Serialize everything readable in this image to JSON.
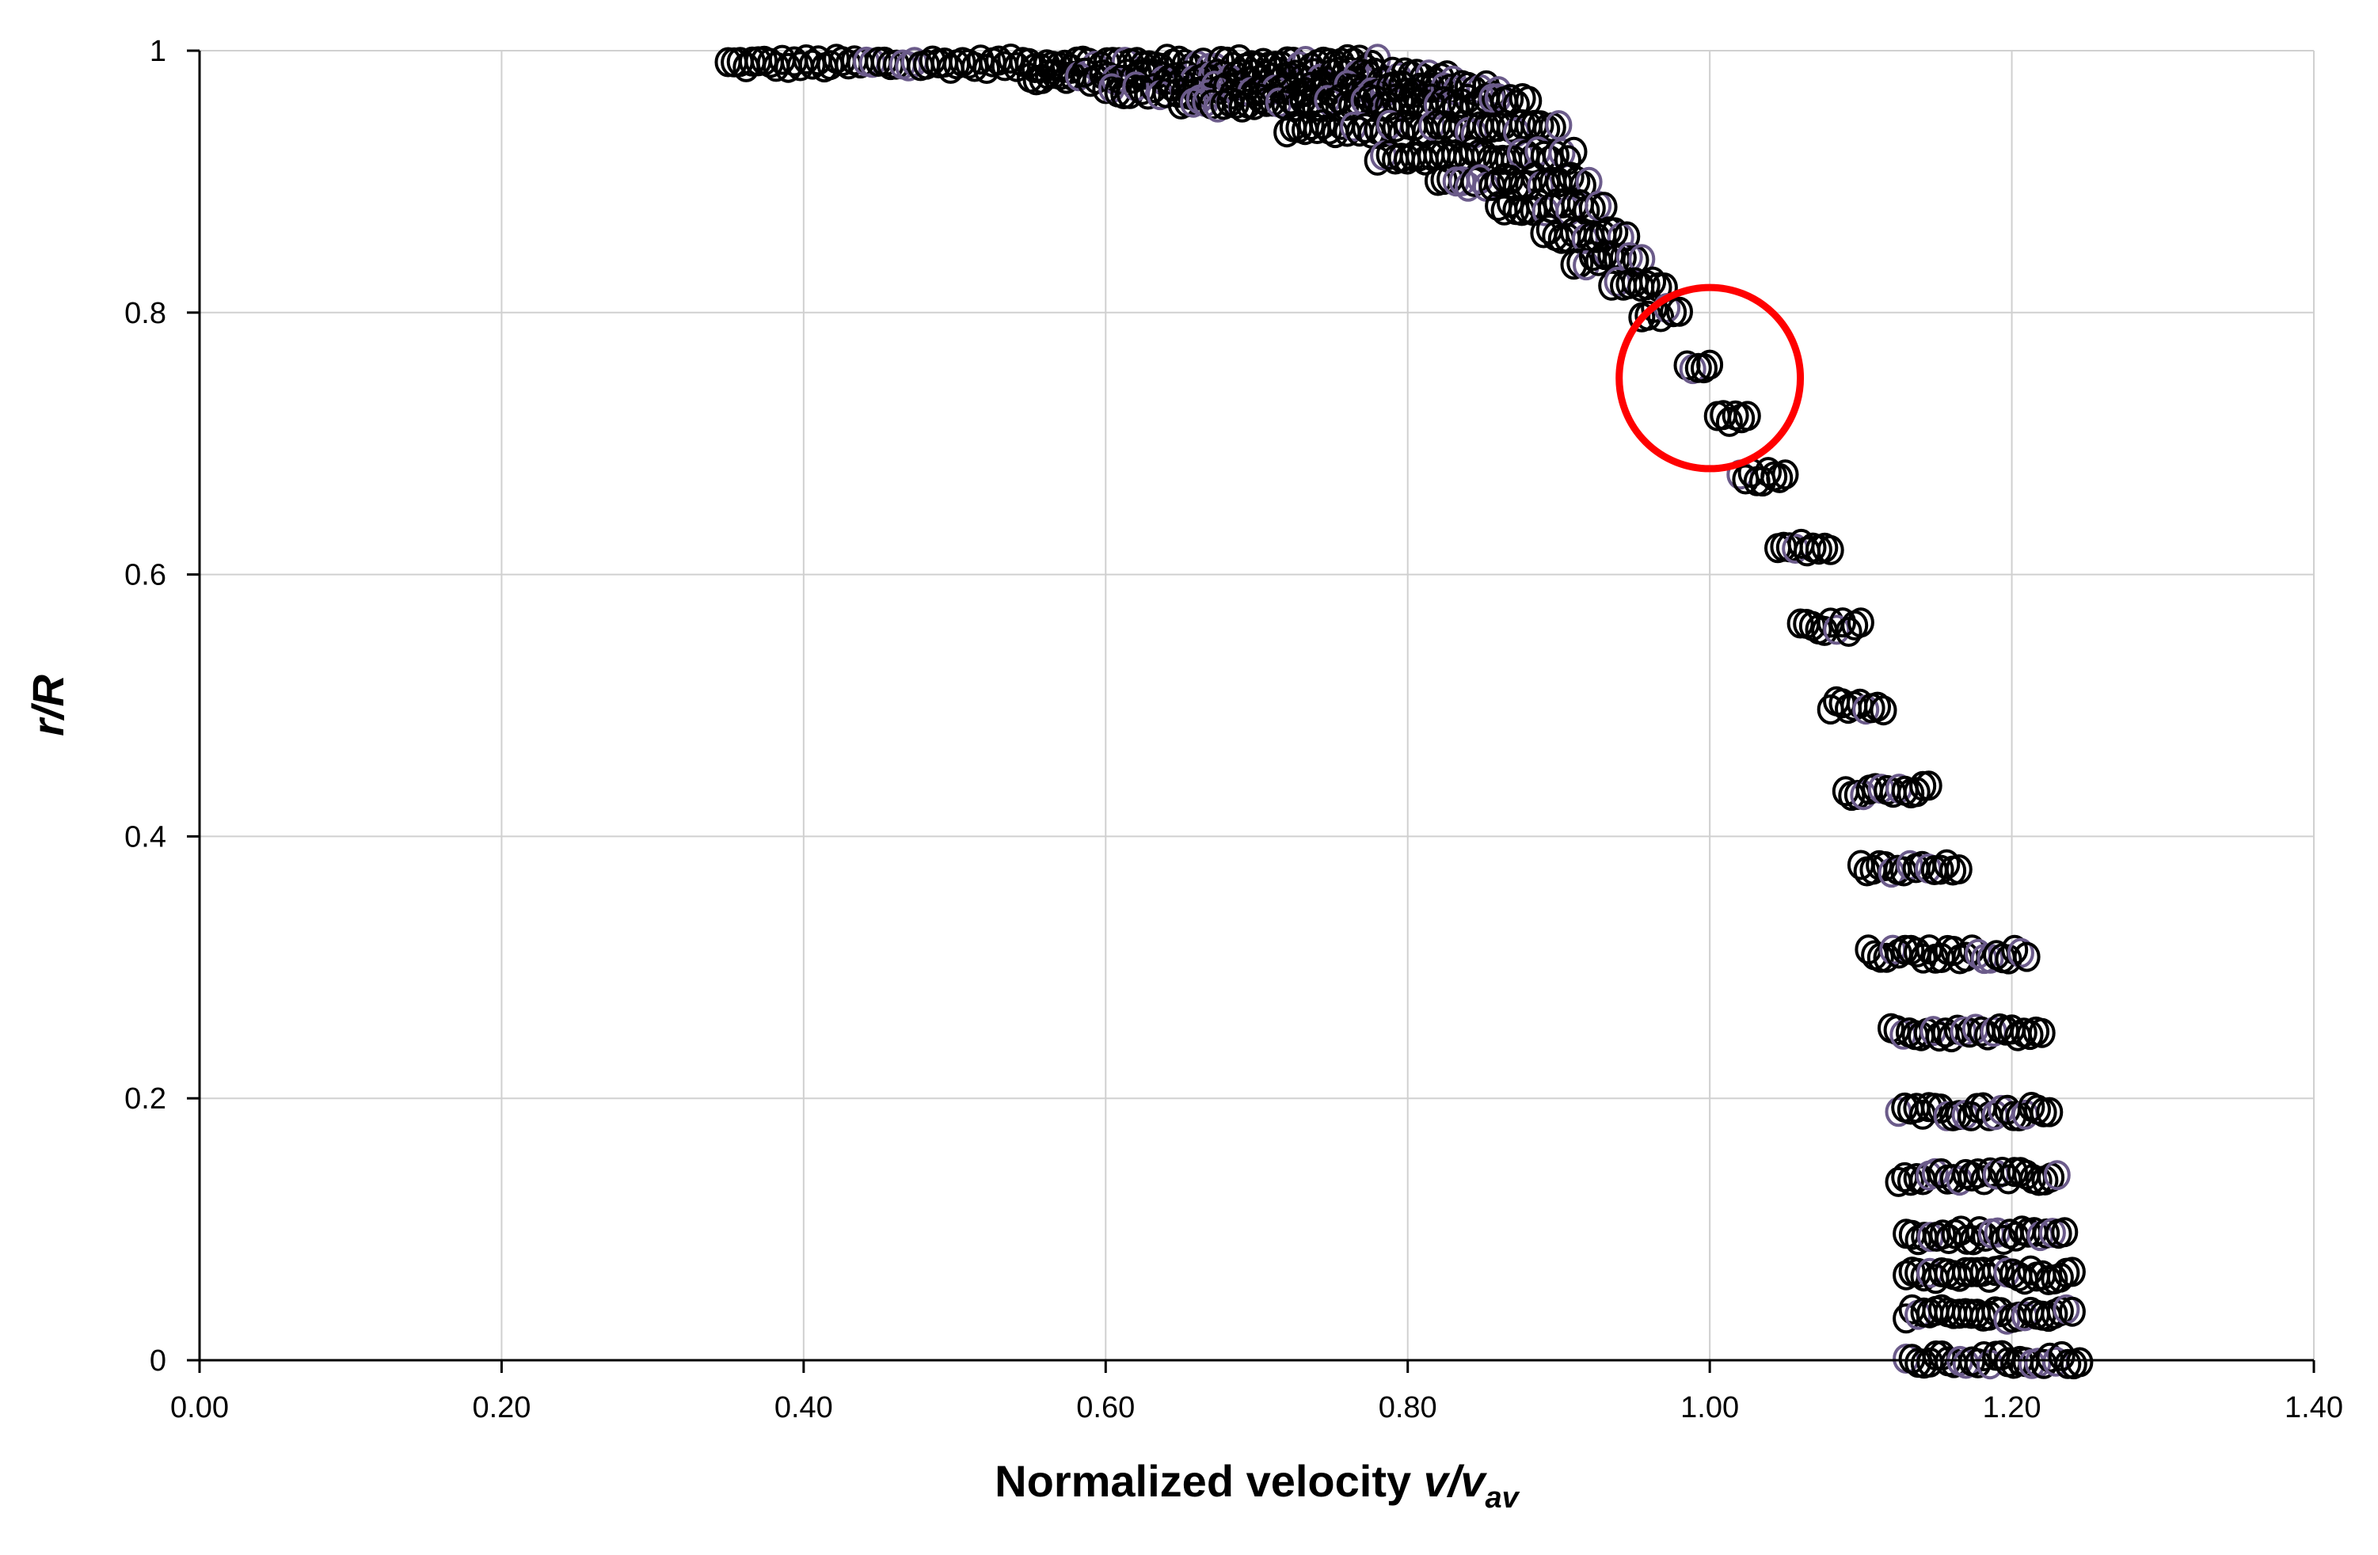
{
  "chart_data": {
    "type": "scatter",
    "title": "",
    "xlabel": "Normalized velocity v/v",
    "xlabel_parts": {
      "main": "Normalized velocity ",
      "var": "v/v",
      "sub": "av"
    },
    "ylabel": "r/R",
    "xlim": [
      0,
      1.4
    ],
    "ylim": [
      0,
      1
    ],
    "xticks": [
      "0.00",
      "0.20",
      "0.40",
      "0.60",
      "0.80",
      "1.00",
      "1.20",
      "1.40"
    ],
    "yticks": [
      "0",
      "0.2",
      "0.4",
      "0.6",
      "0.8",
      "1"
    ],
    "grid": true,
    "legend": "none",
    "marker": "open-circle",
    "colors": {
      "marker": "#000000",
      "marker_alt": "#6b5b8a",
      "highlight": "#ff0000",
      "grid": "#d0d0d0",
      "axis": "#000000"
    },
    "highlight": {
      "shape": "circle",
      "center": [
        1.0,
        0.75
      ],
      "radius_x": 0.06
    },
    "bands": [
      {
        "r": 0.99,
        "v_min": 0.35,
        "v_max": 0.78
      },
      {
        "r": 0.98,
        "v_min": 0.55,
        "v_max": 0.83
      },
      {
        "r": 0.97,
        "v_min": 0.6,
        "v_max": 0.86
      },
      {
        "r": 0.96,
        "v_min": 0.65,
        "v_max": 0.88
      },
      {
        "r": 0.94,
        "v_min": 0.72,
        "v_max": 0.9
      },
      {
        "r": 0.92,
        "v_min": 0.78,
        "v_max": 0.91
      },
      {
        "r": 0.9,
        "v_min": 0.82,
        "v_max": 0.92
      },
      {
        "r": 0.88,
        "v_min": 0.86,
        "v_max": 0.93
      },
      {
        "r": 0.86,
        "v_min": 0.89,
        "v_max": 0.945
      },
      {
        "r": 0.84,
        "v_min": 0.91,
        "v_max": 0.955
      },
      {
        "r": 0.82,
        "v_min": 0.935,
        "v_max": 0.97
      },
      {
        "r": 0.8,
        "v_min": 0.955,
        "v_max": 0.98
      },
      {
        "r": 0.76,
        "v_min": 0.985,
        "v_max": 1.0
      },
      {
        "r": 0.72,
        "v_min": 1.005,
        "v_max": 1.025
      },
      {
        "r": 0.675,
        "v_min": 1.02,
        "v_max": 1.05
      },
      {
        "r": 0.62,
        "v_min": 1.045,
        "v_max": 1.08
      },
      {
        "r": 0.56,
        "v_min": 1.06,
        "v_max": 1.1
      },
      {
        "r": 0.5,
        "v_min": 1.08,
        "v_max": 1.115
      },
      {
        "r": 0.435,
        "v_min": 1.09,
        "v_max": 1.145
      },
      {
        "r": 0.375,
        "v_min": 1.1,
        "v_max": 1.165
      },
      {
        "r": 0.31,
        "v_min": 1.105,
        "v_max": 1.21
      },
      {
        "r": 0.25,
        "v_min": 1.12,
        "v_max": 1.22
      },
      {
        "r": 0.19,
        "v_min": 1.125,
        "v_max": 1.225
      },
      {
        "r": 0.14,
        "v_min": 1.125,
        "v_max": 1.23
      },
      {
        "r": 0.095,
        "v_min": 1.13,
        "v_max": 1.235
      },
      {
        "r": 0.065,
        "v_min": 1.13,
        "v_max": 1.24
      },
      {
        "r": 0.035,
        "v_min": 1.13,
        "v_max": 1.24
      },
      {
        "r": 0.0,
        "v_min": 1.13,
        "v_max": 1.245
      }
    ]
  }
}
